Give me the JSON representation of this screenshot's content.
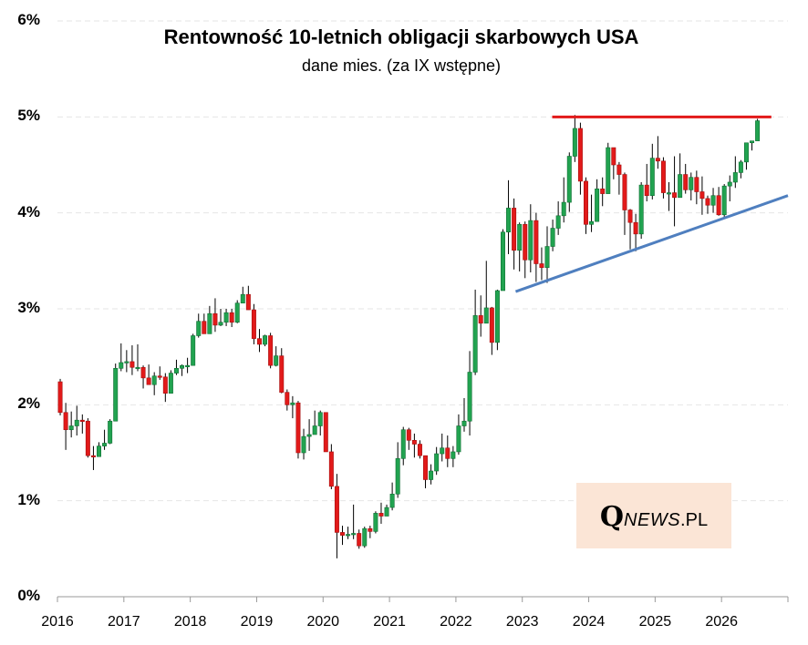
{
  "chart_data": {
    "type": "candlestick",
    "title": "Rentowność 10-letnich obligacji skarbowych USA",
    "subtitle": "dane mies. (za IX wstępne)",
    "ylim": [
      0,
      6
    ],
    "y_ticks": [
      "0%",
      "1%",
      "2%",
      "3%",
      "4%",
      "5%",
      "6%"
    ],
    "x_ticks": [
      "2016",
      "2017",
      "2018",
      "2019",
      "2020",
      "2021",
      "2022",
      "2023",
      "2024",
      "2025",
      "2026"
    ],
    "xlim": [
      2016.0,
      2027.0
    ],
    "grid": true,
    "colors": {
      "up": "#21a350",
      "down": "#e21a1a",
      "resistance": "#e21a1a",
      "support": "#4f7fbf",
      "grid": "#e6e6e6",
      "axis": "#999999"
    },
    "series": [
      [
        2.24,
        2.27,
        1.89,
        1.92
      ],
      [
        1.92,
        2.02,
        1.53,
        1.74
      ],
      [
        1.74,
        1.93,
        1.66,
        1.78
      ],
      [
        1.78,
        1.99,
        1.68,
        1.84
      ],
      [
        1.84,
        1.9,
        1.7,
        1.83
      ],
      [
        1.83,
        1.86,
        1.45,
        1.47
      ],
      [
        1.47,
        1.57,
        1.32,
        1.46
      ],
      [
        1.46,
        1.61,
        1.49,
        1.57
      ],
      [
        1.57,
        1.74,
        1.53,
        1.6
      ],
      [
        1.6,
        1.85,
        1.59,
        1.83
      ],
      [
        1.83,
        2.43,
        1.83,
        2.38
      ],
      [
        2.38,
        2.64,
        2.35,
        2.44
      ],
      [
        2.44,
        2.57,
        2.34,
        2.45
      ],
      [
        2.45,
        2.62,
        2.31,
        2.39
      ],
      [
        2.39,
        2.63,
        2.35,
        2.39
      ],
      [
        2.39,
        2.41,
        2.17,
        2.28
      ],
      [
        2.28,
        2.42,
        2.24,
        2.21
      ],
      [
        2.21,
        2.34,
        2.1,
        2.3
      ],
      [
        2.3,
        2.4,
        2.26,
        2.29
      ],
      [
        2.29,
        2.33,
        2.03,
        2.12
      ],
      [
        2.12,
        2.36,
        2.12,
        2.33
      ],
      [
        2.33,
        2.47,
        2.31,
        2.38
      ],
      [
        2.38,
        2.42,
        2.3,
        2.41
      ],
      [
        2.41,
        2.49,
        2.33,
        2.41
      ],
      [
        2.41,
        2.74,
        2.41,
        2.72
      ],
      [
        2.72,
        2.95,
        2.7,
        2.87
      ],
      [
        2.87,
        2.95,
        2.8,
        2.74
      ],
      [
        2.74,
        3.03,
        2.74,
        2.95
      ],
      [
        2.95,
        3.11,
        2.76,
        2.83
      ],
      [
        2.83,
        3.0,
        2.82,
        2.86
      ],
      [
        2.86,
        3.0,
        2.82,
        2.96
      ],
      [
        2.96,
        3.0,
        2.81,
        2.86
      ],
      [
        2.86,
        3.09,
        2.85,
        3.06
      ],
      [
        3.06,
        3.23,
        3.06,
        3.15
      ],
      [
        3.15,
        3.24,
        2.99,
        2.99
      ],
      [
        2.99,
        3.05,
        2.63,
        2.69
      ],
      [
        2.69,
        2.79,
        2.55,
        2.63
      ],
      [
        2.63,
        2.73,
        2.61,
        2.72
      ],
      [
        2.72,
        2.75,
        2.38,
        2.41
      ],
      [
        2.41,
        2.61,
        2.4,
        2.51
      ],
      [
        2.51,
        2.59,
        2.12,
        2.13
      ],
      [
        2.13,
        2.16,
        1.94,
        2.0
      ],
      [
        2.0,
        2.09,
        1.86,
        2.02
      ],
      [
        2.02,
        2.04,
        1.44,
        1.5
      ],
      [
        1.5,
        1.75,
        1.43,
        1.67
      ],
      [
        1.67,
        1.85,
        1.52,
        1.69
      ],
      [
        1.69,
        1.94,
        1.69,
        1.78
      ],
      [
        1.78,
        1.94,
        1.68,
        1.92
      ],
      [
        1.92,
        1.92,
        1.51,
        1.51
      ],
      [
        1.51,
        1.59,
        1.12,
        1.15
      ],
      [
        1.15,
        1.28,
        0.4,
        0.67
      ],
      [
        0.67,
        0.74,
        0.54,
        0.64
      ],
      [
        0.64,
        0.73,
        0.6,
        0.65
      ],
      [
        0.65,
        0.96,
        0.6,
        0.66
      ],
      [
        0.66,
        0.7,
        0.5,
        0.53
      ],
      [
        0.53,
        0.73,
        0.51,
        0.71
      ],
      [
        0.71,
        0.74,
        0.61,
        0.68
      ],
      [
        0.68,
        0.89,
        0.66,
        0.87
      ],
      [
        0.87,
        0.98,
        0.76,
        0.84
      ],
      [
        0.84,
        0.96,
        0.84,
        0.93
      ],
      [
        0.93,
        1.19,
        0.9,
        1.07
      ],
      [
        1.07,
        1.61,
        1.03,
        1.44
      ],
      [
        1.44,
        1.77,
        1.37,
        1.74
      ],
      [
        1.74,
        1.76,
        1.53,
        1.63
      ],
      [
        1.63,
        1.7,
        1.45,
        1.59
      ],
      [
        1.59,
        1.63,
        1.44,
        1.47
      ],
      [
        1.47,
        1.47,
        1.13,
        1.22
      ],
      [
        1.22,
        1.38,
        1.17,
        1.31
      ],
      [
        1.31,
        1.56,
        1.27,
        1.49
      ],
      [
        1.49,
        1.7,
        1.41,
        1.55
      ],
      [
        1.55,
        1.68,
        1.35,
        1.44
      ],
      [
        1.44,
        1.57,
        1.35,
        1.51
      ],
      [
        1.51,
        1.9,
        1.48,
        1.78
      ],
      [
        1.78,
        2.07,
        1.72,
        1.83
      ],
      [
        1.83,
        2.56,
        1.68,
        2.34
      ],
      [
        2.34,
        3.2,
        2.31,
        2.93
      ],
      [
        2.93,
        3.14,
        2.71,
        2.85
      ],
      [
        2.85,
        3.5,
        2.88,
        3.01
      ],
      [
        3.01,
        3.02,
        2.52,
        2.65
      ],
      [
        2.65,
        3.2,
        2.57,
        3.19
      ],
      [
        3.19,
        3.83,
        3.19,
        3.8
      ],
      [
        3.8,
        4.34,
        3.57,
        4.05
      ],
      [
        4.05,
        4.15,
        3.41,
        3.61
      ],
      [
        3.61,
        3.9,
        3.39,
        3.88
      ],
      [
        3.88,
        3.91,
        3.32,
        3.51
      ],
      [
        3.51,
        4.09,
        3.38,
        3.92
      ],
      [
        3.92,
        4.0,
        3.28,
        3.47
      ],
      [
        3.47,
        3.64,
        3.3,
        3.43
      ],
      [
        3.43,
        3.86,
        3.27,
        3.65
      ],
      [
        3.65,
        3.93,
        3.6,
        3.84
      ],
      [
        3.84,
        4.12,
        3.77,
        3.97
      ],
      [
        3.97,
        4.37,
        3.9,
        4.11
      ],
      [
        4.11,
        4.63,
        4.01,
        4.59
      ],
      [
        4.59,
        5.02,
        4.53,
        4.88
      ],
      [
        4.88,
        4.94,
        4.19,
        4.33
      ],
      [
        4.33,
        4.37,
        3.78,
        3.88
      ],
      [
        3.88,
        4.19,
        3.8,
        3.91
      ],
      [
        3.91,
        4.35,
        3.92,
        4.25
      ],
      [
        4.25,
        4.37,
        4.07,
        4.2
      ],
      [
        4.2,
        4.73,
        4.22,
        4.68
      ],
      [
        4.68,
        4.64,
        4.35,
        4.5
      ],
      [
        4.5,
        4.53,
        4.19,
        4.4
      ],
      [
        4.4,
        4.42,
        3.77,
        4.03
      ],
      [
        4.03,
        4.04,
        3.62,
        3.9
      ],
      [
        3.9,
        3.99,
        3.6,
        3.78
      ],
      [
        3.78,
        4.32,
        3.73,
        4.29
      ],
      [
        4.29,
        4.51,
        4.12,
        4.18
      ],
      [
        4.18,
        4.72,
        4.14,
        4.57
      ],
      [
        4.57,
        4.8,
        4.46,
        4.54
      ],
      [
        4.54,
        4.58,
        4.15,
        4.21
      ],
      [
        4.21,
        4.32,
        4.02,
        4.21
      ],
      [
        4.21,
        4.59,
        3.86,
        4.16
      ],
      [
        4.16,
        4.62,
        4.17,
        4.4
      ],
      [
        4.4,
        4.51,
        4.2,
        4.24
      ],
      [
        4.24,
        4.42,
        4.13,
        4.37
      ],
      [
        4.37,
        4.44,
        4.09,
        4.22
      ],
      [
        4.22,
        4.38,
        3.98,
        4.15
      ],
      [
        4.15,
        4.18,
        3.99,
        4.08
      ],
      [
        4.08,
        4.26,
        4.0,
        4.18
      ],
      [
        4.18,
        4.27,
        3.97,
        3.98
      ],
      [
        3.98,
        4.3,
        3.95,
        4.28
      ],
      [
        4.28,
        4.39,
        4.12,
        4.32
      ],
      [
        4.32,
        4.59,
        4.26,
        4.42
      ],
      [
        4.42,
        4.55,
        4.36,
        4.53
      ],
      [
        4.53,
        4.58,
        4.45,
        4.73
      ],
      [
        4.73,
        4.75,
        4.65,
        4.75
      ],
      [
        4.75,
        4.98,
        4.75,
        4.96
      ]
    ],
    "series_fields": [
      "open",
      "high",
      "low",
      "close"
    ],
    "series_start": 2016.0,
    "series_step_years": 0.08333,
    "resistance_line": {
      "x": [
        2023.45,
        2026.75
      ],
      "y": [
        5.0,
        5.0
      ]
    },
    "support_line": {
      "x": [
        2022.9,
        2027.0
      ],
      "y": [
        3.18,
        4.18
      ]
    }
  },
  "logo": {
    "q": "Q",
    "news": "NEWS",
    "pl": ".PL"
  }
}
